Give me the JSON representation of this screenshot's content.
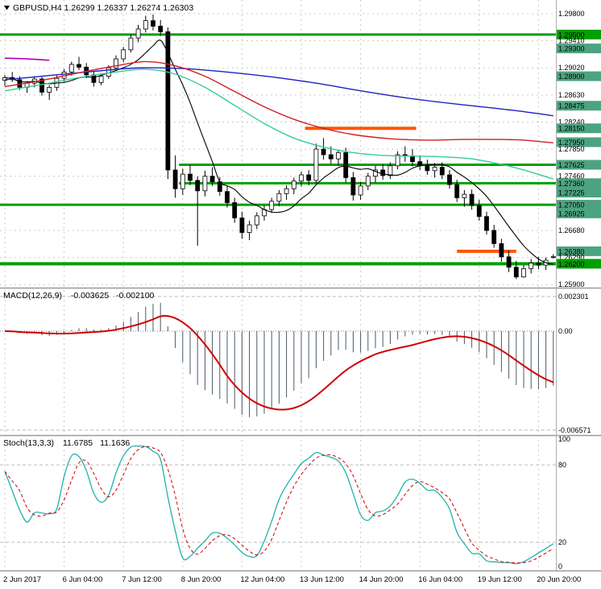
{
  "header": {
    "title": "GBPUSD,H4 1.26299 1.26337 1.26274 1.26303"
  },
  "colors": {
    "background": "#ffffff",
    "grid": "#c9c9c9",
    "level_green": "#00A000",
    "level_teal": "#4CA380",
    "level_orange": "#FF5500",
    "bull_body": "#ffffff",
    "bear_body": "#000000",
    "separator": "#9a9a9a"
  },
  "chart_data": {
    "type": "candlestick",
    "symbol": "GBPUSD",
    "timeframe": "H4",
    "current_ohlc": {
      "open": "1.26299",
      "high": "1.26337",
      "low": "1.26274",
      "close": "1.26303"
    },
    "time_axis": [
      {
        "label": "2 Jun 2017",
        "i": 0
      },
      {
        "label": "6 Jun 04:00",
        "i": 8
      },
      {
        "label": "7 Jun 12:00",
        "i": 16
      },
      {
        "label": "8 Jun 20:00",
        "i": 24
      },
      {
        "label": "12 Jun 04:00",
        "i": 32
      },
      {
        "label": "13 Jun 12:00",
        "i": 40
      },
      {
        "label": "14 Jun 20:00",
        "i": 48
      },
      {
        "label": "16 Jun 04:00",
        "i": 56
      },
      {
        "label": "19 Jun 12:00",
        "i": 64
      },
      {
        "label": "20 Jun 20:00",
        "i": 72
      }
    ],
    "price_axis": [
      {
        "text": "1.29800",
        "price": 1.298,
        "style": "grid"
      },
      {
        "text": "1.29500",
        "price": 1.295,
        "style": "green"
      },
      {
        "text": "1.29410",
        "price": 1.2941,
        "style": "grid"
      },
      {
        "text": "1.29300",
        "price": 1.293,
        "style": "teal"
      },
      {
        "text": "1.29020",
        "price": 1.2902,
        "style": "grid"
      },
      {
        "text": "1.28900",
        "price": 1.289,
        "style": "teal"
      },
      {
        "text": "1.28630",
        "price": 1.2863,
        "style": "grid"
      },
      {
        "text": "1.28475",
        "price": 1.28475,
        "style": "teal"
      },
      {
        "text": "1.28240",
        "price": 1.2824,
        "style": "grid"
      },
      {
        "text": "1.28150",
        "price": 1.2815,
        "style": "teal"
      },
      {
        "text": "1.27950",
        "price": 1.2795,
        "style": "teal"
      },
      {
        "text": "1.27850",
        "price": 1.2785,
        "style": "grid"
      },
      {
        "text": "1.27625",
        "price": 1.27625,
        "style": "teal"
      },
      {
        "text": "1.27460",
        "price": 1.2746,
        "style": "grid"
      },
      {
        "text": "1.27360",
        "price": 1.2736,
        "style": "teal"
      },
      {
        "text": "1.27225",
        "price": 1.27225,
        "style": "teal"
      },
      {
        "text": "1.27050",
        "price": 1.2705,
        "style": "teal"
      },
      {
        "text": "1.26925",
        "price": 1.26925,
        "style": "teal"
      },
      {
        "text": "1.26680",
        "price": 1.2668,
        "style": "grid"
      },
      {
        "text": "1.26380",
        "price": 1.2638,
        "style": "teal"
      },
      {
        "text": "1.26290",
        "price": 1.2629,
        "style": "grid"
      },
      {
        "text": "1.26200",
        "price": 1.262,
        "style": "green"
      },
      {
        "text": "1.25900",
        "price": 1.259,
        "style": "grid"
      }
    ],
    "hlines": [
      {
        "price": 1.295,
        "color": "#00A000",
        "w": 3,
        "from": null,
        "to": null
      },
      {
        "price": 1.27625,
        "color": "#00A000",
        "w": 3,
        "from": 23.5,
        "to": null
      },
      {
        "price": 1.2736,
        "color": "#00A000",
        "w": 3,
        "from": 23.5,
        "to": null
      },
      {
        "price": 1.2705,
        "color": "#00A000",
        "w": 3,
        "from": null,
        "to": null
      },
      {
        "price": 1.262,
        "color": "#00A000",
        "w": 4,
        "from": null,
        "to": null
      },
      {
        "price": 1.2815,
        "color": "#FF5500",
        "w": 4,
        "from": 40.5,
        "to": 55.5
      },
      {
        "price": 1.2638,
        "color": "#FF5500",
        "w": 4,
        "from": 61.0,
        "to": 69.0
      }
    ],
    "candles": [
      [
        1.2884,
        1.2892,
        1.2876,
        1.2888
      ],
      [
        1.2888,
        1.2896,
        1.2882,
        1.2885
      ],
      [
        1.2885,
        1.289,
        1.287,
        1.2874
      ],
      [
        1.2874,
        1.2883,
        1.2866,
        1.288
      ],
      [
        1.288,
        1.289,
        1.2874,
        1.2886
      ],
      [
        1.2886,
        1.2889,
        1.2862,
        1.2867
      ],
      [
        1.2867,
        1.2877,
        1.2856,
        1.2874
      ],
      [
        1.2874,
        1.2891,
        1.2869,
        1.2887
      ],
      [
        1.2887,
        1.29,
        1.2882,
        1.2896
      ],
      [
        1.2896,
        1.2911,
        1.2891,
        1.2907
      ],
      [
        1.2907,
        1.2918,
        1.2899,
        1.2903
      ],
      [
        1.2903,
        1.2909,
        1.2887,
        1.2892
      ],
      [
        1.2892,
        1.2897,
        1.2875,
        1.2881
      ],
      [
        1.2881,
        1.2894,
        1.2877,
        1.289
      ],
      [
        1.289,
        1.2906,
        1.2886,
        1.2902
      ],
      [
        1.2902,
        1.292,
        1.2898,
        1.2915
      ],
      [
        1.2915,
        1.2932,
        1.291,
        1.2928
      ],
      [
        1.2928,
        1.295,
        1.2924,
        1.2945
      ],
      [
        1.2945,
        1.2964,
        1.2939,
        1.2958
      ],
      [
        1.2958,
        1.2977,
        1.2953,
        1.297
      ],
      [
        1.297,
        1.2979,
        1.2956,
        1.2962
      ],
      [
        1.2962,
        1.2971,
        1.2948,
        1.2954
      ],
      [
        1.2954,
        1.296,
        1.2742,
        1.2755
      ],
      [
        1.2755,
        1.2776,
        1.2715,
        1.2728
      ],
      [
        1.2728,
        1.2757,
        1.2719,
        1.2749
      ],
      [
        1.2749,
        1.2762,
        1.2733,
        1.274
      ],
      [
        1.274,
        1.2746,
        1.2646,
        1.2725
      ],
      [
        1.2725,
        1.2754,
        1.2717,
        1.2746
      ],
      [
        1.2746,
        1.2759,
        1.2732,
        1.2738
      ],
      [
        1.2738,
        1.2745,
        1.2718,
        1.2724
      ],
      [
        1.2724,
        1.2733,
        1.2701,
        1.2708
      ],
      [
        1.2708,
        1.2715,
        1.2679,
        1.2686
      ],
      [
        1.2686,
        1.2695,
        1.2656,
        1.2665
      ],
      [
        1.2665,
        1.2682,
        1.2654,
        1.2676
      ],
      [
        1.2676,
        1.2694,
        1.267,
        1.2689
      ],
      [
        1.2689,
        1.2704,
        1.2682,
        1.2698
      ],
      [
        1.2698,
        1.2715,
        1.2693,
        1.271
      ],
      [
        1.271,
        1.2726,
        1.2703,
        1.2721
      ],
      [
        1.2721,
        1.2733,
        1.2712,
        1.2728
      ],
      [
        1.2728,
        1.2744,
        1.272,
        1.2739
      ],
      [
        1.2739,
        1.2753,
        1.2731,
        1.2748
      ],
      [
        1.2748,
        1.2755,
        1.2733,
        1.274
      ],
      [
        1.274,
        1.2793,
        1.2736,
        1.2785
      ],
      [
        1.2785,
        1.2801,
        1.277,
        1.2777
      ],
      [
        1.2777,
        1.2789,
        1.2764,
        1.2771
      ],
      [
        1.2771,
        1.2784,
        1.2761,
        1.278
      ],
      [
        1.278,
        1.2787,
        1.2737,
        1.2744
      ],
      [
        1.2744,
        1.2752,
        1.2711,
        1.2719
      ],
      [
        1.2719,
        1.2738,
        1.2712,
        1.2732
      ],
      [
        1.2732,
        1.2751,
        1.2726,
        1.2746
      ],
      [
        1.2746,
        1.2761,
        1.2737,
        1.2755
      ],
      [
        1.2755,
        1.2763,
        1.2741,
        1.2747
      ],
      [
        1.2747,
        1.2766,
        1.2742,
        1.2761
      ],
      [
        1.2761,
        1.2782,
        1.2756,
        1.2777
      ],
      [
        1.2777,
        1.2789,
        1.2767,
        1.2775
      ],
      [
        1.2775,
        1.2785,
        1.276,
        1.2767
      ],
      [
        1.2767,
        1.2776,
        1.2755,
        1.2761
      ],
      [
        1.2761,
        1.277,
        1.2748,
        1.2754
      ],
      [
        1.2754,
        1.2765,
        1.2744,
        1.2759
      ],
      [
        1.2759,
        1.2766,
        1.2742,
        1.2748
      ],
      [
        1.2748,
        1.2755,
        1.2728,
        1.2734
      ],
      [
        1.2734,
        1.2741,
        1.2709,
        1.2715
      ],
      [
        1.2715,
        1.2726,
        1.2702,
        1.272
      ],
      [
        1.272,
        1.2727,
        1.2698,
        1.2704
      ],
      [
        1.2704,
        1.2712,
        1.2682,
        1.2688
      ],
      [
        1.2688,
        1.2695,
        1.2662,
        1.2668
      ],
      [
        1.2668,
        1.2676,
        1.2643,
        1.2649
      ],
      [
        1.2649,
        1.2656,
        1.2623,
        1.263
      ],
      [
        1.263,
        1.2639,
        1.2608,
        1.2615
      ],
      [
        1.2615,
        1.2624,
        1.2598,
        1.2601
      ],
      [
        1.2601,
        1.2618,
        1.26,
        1.2613
      ],
      [
        1.2613,
        1.2627,
        1.2606,
        1.2621
      ],
      [
        1.2621,
        1.263,
        1.2612,
        1.2618
      ],
      [
        1.2618,
        1.2629,
        1.2611,
        1.2625
      ],
      [
        1.26299,
        1.26337,
        1.26274,
        1.26303
      ]
    ],
    "moving_averages": [
      {
        "name": "ma-fast-black-line",
        "color": "#000000",
        "width": 1.1,
        "type": "sma_close",
        "period": 8
      },
      {
        "name": "ma-slow-blue-line",
        "color": "#2020C0",
        "width": 1.4,
        "points": [
          [
            0,
            1.2885
          ],
          [
            6,
            1.2891
          ],
          [
            12,
            1.2897
          ],
          [
            18,
            1.2902
          ],
          [
            24,
            1.2901
          ],
          [
            30,
            1.2896
          ],
          [
            36,
            1.2889
          ],
          [
            42,
            1.288
          ],
          [
            48,
            1.2869
          ],
          [
            54,
            1.2859
          ],
          [
            60,
            1.2851
          ],
          [
            66,
            1.2844
          ],
          [
            70,
            1.2839
          ],
          [
            74,
            1.2833
          ]
        ]
      },
      {
        "name": "ma-medium-red-line",
        "color": "#D02020",
        "width": 1.4,
        "points": [
          [
            0,
            1.2875
          ],
          [
            5,
            1.2884
          ],
          [
            10,
            1.2895
          ],
          [
            15,
            1.2905
          ],
          [
            19,
            1.2911
          ],
          [
            23,
            1.2905
          ],
          [
            27,
            1.289
          ],
          [
            31,
            1.2868
          ],
          [
            35,
            1.2846
          ],
          [
            39,
            1.2828
          ],
          [
            43,
            1.2815
          ],
          [
            47,
            1.2806
          ],
          [
            52,
            1.28
          ],
          [
            57,
            1.2798
          ],
          [
            62,
            1.2799
          ],
          [
            66,
            1.2799
          ],
          [
            70,
            1.2798
          ],
          [
            74,
            1.2794
          ]
        ]
      },
      {
        "name": "ma-teal-line",
        "color": "#33CC99",
        "width": 1.4,
        "points": [
          [
            0,
            1.2869
          ],
          [
            5,
            1.2878
          ],
          [
            10,
            1.2888
          ],
          [
            15,
            1.2896
          ],
          [
            19,
            1.29
          ],
          [
            23,
            1.2893
          ],
          [
            27,
            1.2874
          ],
          [
            31,
            1.2848
          ],
          [
            35,
            1.2822
          ],
          [
            39,
            1.2801
          ],
          [
            43,
            1.2788
          ],
          [
            47,
            1.278
          ],
          [
            51,
            1.2776
          ],
          [
            55,
            1.2775
          ],
          [
            59,
            1.2774
          ],
          [
            63,
            1.2771
          ],
          [
            67,
            1.2763
          ],
          [
            70,
            1.2755
          ],
          [
            74,
            1.2742
          ]
        ]
      },
      {
        "name": "ma-magenta-line",
        "color": "#B000B0",
        "width": 1.6,
        "points": [
          [
            0,
            1.2916
          ],
          [
            3,
            1.2915
          ],
          [
            6,
            1.2913
          ]
        ]
      }
    ],
    "macd": {
      "label": "MACD(12,26,9)",
      "value_main": "-0.003625",
      "value_signal": "-0.002100",
      "fast": 12,
      "slow": 26,
      "signal": 9,
      "axis_labels": [
        "0.002301",
        "0.00",
        "-0.006571"
      ],
      "axis_values": [
        0.002301,
        0,
        -0.006571
      ],
      "hist_color": "#4A5A68",
      "signal_color": "#D00000"
    },
    "stoch": {
      "label": "Stoch(13,3,3)",
      "value_k": "11.6785",
      "value_d": "11.1636",
      "k": 13,
      "d": 3,
      "slowing": 3,
      "axis_labels": [
        "100",
        "80",
        "20",
        "0"
      ],
      "axis_values": [
        100,
        80,
        20,
        0
      ],
      "levels": [
        80,
        20
      ],
      "k_color": "#20B2AA",
      "d_color": "#D00000"
    }
  }
}
